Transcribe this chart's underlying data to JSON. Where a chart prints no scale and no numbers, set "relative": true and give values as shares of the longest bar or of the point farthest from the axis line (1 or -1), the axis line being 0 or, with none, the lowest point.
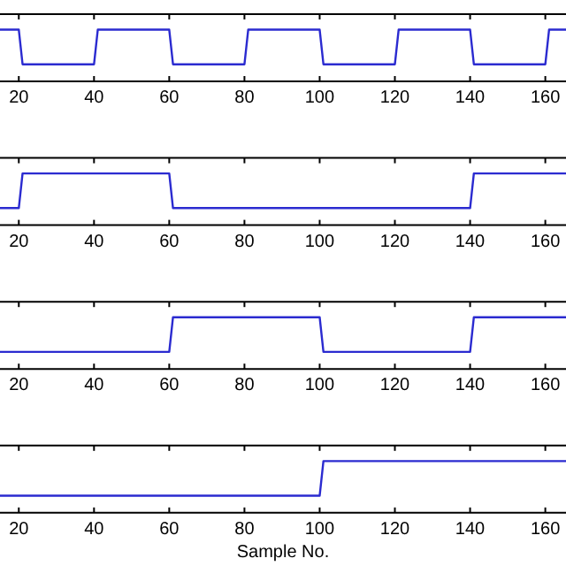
{
  "chart_data": [
    {
      "type": "line",
      "relative": true,
      "xlim": [
        15,
        165.5
      ],
      "xticks": [
        20,
        40,
        60,
        80,
        100,
        120,
        140,
        160
      ],
      "tick_labels": "x",
      "marker": "none",
      "line_style": "solid",
      "grid": false,
      "x": [
        15,
        20,
        21,
        40,
        41,
        60,
        61,
        80,
        81,
        100,
        101,
        120,
        121,
        140,
        141,
        160,
        161,
        165.5
      ],
      "series": [
        {
          "color": "#2b2bd0",
          "values": [
            1,
            1,
            0.33,
            0.33,
            1,
            1,
            0.33,
            0.33,
            1,
            1,
            0.33,
            0.33,
            1,
            1,
            0.33,
            0.33,
            1,
            1
          ]
        }
      ]
    },
    {
      "type": "line",
      "relative": true,
      "xlim": [
        15,
        165.5
      ],
      "xticks": [
        20,
        40,
        60,
        80,
        100,
        120,
        140,
        160
      ],
      "tick_labels": "x",
      "marker": "none",
      "line_style": "solid",
      "grid": false,
      "x": [
        15,
        20,
        21,
        60,
        61,
        140,
        141,
        165.5
      ],
      "series": [
        {
          "color": "#2b2bd0",
          "values": [
            0.33,
            0.33,
            1,
            1,
            0.33,
            0.33,
            1,
            1
          ]
        }
      ]
    },
    {
      "type": "line",
      "relative": true,
      "xlim": [
        15,
        165.5
      ],
      "xticks": [
        20,
        40,
        60,
        80,
        100,
        120,
        140,
        160
      ],
      "tick_labels": "x",
      "marker": "none",
      "line_style": "solid",
      "grid": false,
      "x": [
        15,
        60,
        61,
        100,
        101,
        140,
        141,
        165.5
      ],
      "series": [
        {
          "color": "#2b2bd0",
          "values": [
            0.33,
            0.33,
            1,
            1,
            0.33,
            0.33,
            1,
            1
          ]
        }
      ]
    },
    {
      "type": "line",
      "relative": true,
      "xlim": [
        15,
        165.5
      ],
      "xticks": [
        20,
        40,
        60,
        80,
        100,
        120,
        140,
        160
      ],
      "tick_labels": "x",
      "marker": "none",
      "line_style": "solid",
      "grid": false,
      "xlabel": "Sample No.",
      "x": [
        15,
        100,
        101,
        165.5
      ],
      "series": [
        {
          "color": "#2b2bd0",
          "values": [
            0.33,
            0.33,
            1,
            1
          ]
        }
      ]
    }
  ]
}
